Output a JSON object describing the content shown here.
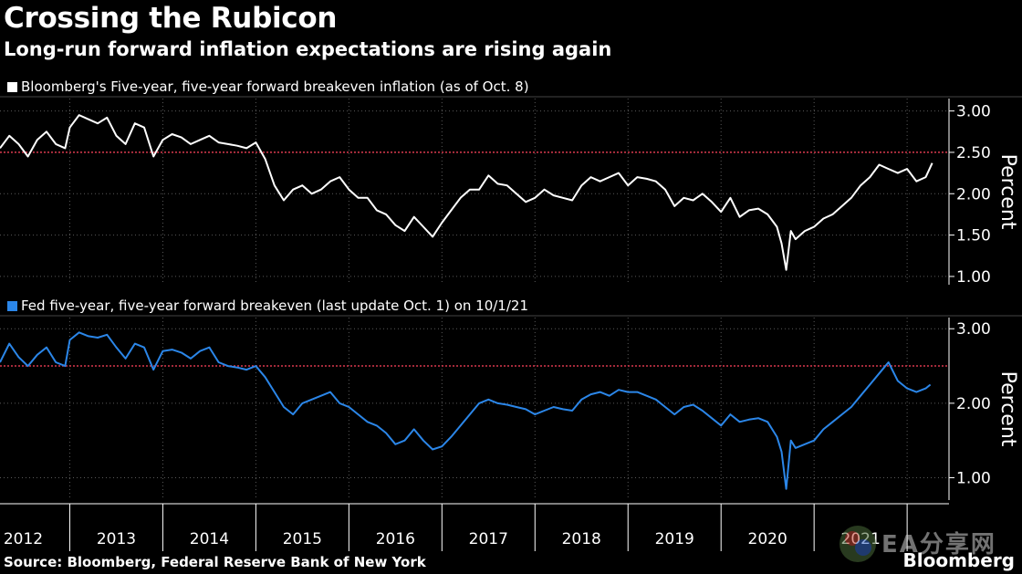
{
  "header": {
    "title": "Crossing the Rubicon",
    "subtitle": "Long-run forward inflation expectations are rising again"
  },
  "footer": {
    "source": "Source: Bloomberg, Federal Reserve Bank of New York",
    "brand": "Bloomberg",
    "watermark": "EA分享网"
  },
  "colors": {
    "background": "#000000",
    "series1": "#ffffff",
    "series2": "#2b86e8",
    "reference_line": "#d9394d",
    "grid": "#5a5a5a"
  },
  "chart_data": [
    {
      "type": "line",
      "legend": "Bloomberg's Five-year, five-year forward breakeven inflation (as of Oct. 8)",
      "ylabel": "Percent",
      "ylim": [
        0.9,
        3.15
      ],
      "yticks": [
        "3.00",
        "2.50",
        "2.00",
        "1.50",
        "1.00"
      ],
      "ytick_values": [
        3.0,
        2.5,
        2.0,
        1.5,
        1.0
      ],
      "reference_line": 2.5,
      "grid": true,
      "series": [
        {
          "x": [
            2011.75,
            2011.85,
            2011.95,
            2012.05,
            2012.15,
            2012.25,
            2012.35,
            2012.45,
            2012.5,
            2012.6,
            2012.7,
            2012.8,
            2012.9,
            2013.0,
            2013.1,
            2013.2,
            2013.3,
            2013.4,
            2013.5,
            2013.6,
            2013.7,
            2013.8,
            2013.9,
            2014.0,
            2014.1,
            2014.2,
            2014.3,
            2014.4,
            2014.5,
            2014.6,
            2014.7,
            2014.8,
            2014.9,
            2015.0,
            2015.1,
            2015.2,
            2015.3,
            2015.4,
            2015.5,
            2015.6,
            2015.7,
            2015.8,
            2015.9,
            2016.0,
            2016.1,
            2016.2,
            2016.3,
            2016.4,
            2016.5,
            2016.6,
            2016.7,
            2016.8,
            2016.9,
            2017.0,
            2017.1,
            2017.2,
            2017.3,
            2017.4,
            2017.5,
            2017.6,
            2017.7,
            2017.8,
            2017.9,
            2018.0,
            2018.1,
            2018.2,
            2018.3,
            2018.4,
            2018.5,
            2018.6,
            2018.7,
            2018.8,
            2018.9,
            2019.0,
            2019.1,
            2019.2,
            2019.3,
            2019.4,
            2019.5,
            2019.6,
            2019.7,
            2019.8,
            2019.9,
            2020.0,
            2020.1,
            2020.15,
            2020.2,
            2020.25,
            2020.3,
            2020.4,
            2020.5,
            2020.6,
            2020.7,
            2020.8,
            2020.9,
            2021.0,
            2021.1,
            2021.2,
            2021.3,
            2021.4,
            2021.5,
            2021.6,
            2021.7,
            2021.77
          ],
          "values": [
            2.55,
            2.7,
            2.6,
            2.45,
            2.65,
            2.75,
            2.6,
            2.55,
            2.8,
            2.95,
            2.9,
            2.85,
            2.92,
            2.7,
            2.6,
            2.85,
            2.8,
            2.45,
            2.65,
            2.72,
            2.68,
            2.6,
            2.65,
            2.7,
            2.62,
            2.6,
            2.58,
            2.55,
            2.62,
            2.42,
            2.1,
            1.92,
            2.05,
            2.1,
            2.0,
            2.05,
            2.15,
            2.2,
            2.05,
            1.95,
            1.95,
            1.8,
            1.75,
            1.62,
            1.55,
            1.72,
            1.6,
            1.48,
            1.65,
            1.8,
            1.95,
            2.05,
            2.05,
            2.22,
            2.12,
            2.1,
            2.0,
            1.9,
            1.95,
            2.05,
            1.98,
            1.95,
            1.92,
            2.1,
            2.2,
            2.15,
            2.2,
            2.25,
            2.1,
            2.2,
            2.18,
            2.15,
            2.05,
            1.85,
            1.95,
            1.92,
            2.0,
            1.9,
            1.78,
            1.95,
            1.72,
            1.8,
            1.82,
            1.75,
            1.6,
            1.4,
            1.08,
            1.55,
            1.45,
            1.55,
            1.6,
            1.7,
            1.75,
            1.85,
            1.95,
            2.1,
            2.2,
            2.35,
            2.3,
            2.25,
            2.3,
            2.15,
            2.2,
            2.37
          ]
        }
      ]
    },
    {
      "type": "line",
      "legend": "Fed five-year, five-year forward breakeven (last update Oct. 1) on 10/1/21",
      "ylabel": "Percent",
      "ylim": [
        0.7,
        3.15
      ],
      "yticks": [
        "3.00",
        "2.00",
        "1.00"
      ],
      "ytick_values": [
        3.0,
        2.0,
        1.0
      ],
      "reference_line": 2.5,
      "grid": true,
      "series": [
        {
          "x": [
            2011.75,
            2011.85,
            2011.95,
            2012.05,
            2012.15,
            2012.25,
            2012.35,
            2012.45,
            2012.5,
            2012.6,
            2012.7,
            2012.8,
            2012.9,
            2013.0,
            2013.1,
            2013.2,
            2013.3,
            2013.4,
            2013.5,
            2013.6,
            2013.7,
            2013.8,
            2013.9,
            2014.0,
            2014.1,
            2014.2,
            2014.3,
            2014.4,
            2014.5,
            2014.6,
            2014.7,
            2014.8,
            2014.9,
            2015.0,
            2015.1,
            2015.2,
            2015.3,
            2015.4,
            2015.5,
            2015.6,
            2015.7,
            2015.8,
            2015.9,
            2016.0,
            2016.1,
            2016.2,
            2016.3,
            2016.4,
            2016.5,
            2016.6,
            2016.7,
            2016.8,
            2016.9,
            2017.0,
            2017.1,
            2017.2,
            2017.3,
            2017.4,
            2017.5,
            2017.6,
            2017.7,
            2017.8,
            2017.9,
            2018.0,
            2018.1,
            2018.2,
            2018.3,
            2018.4,
            2018.5,
            2018.6,
            2018.7,
            2018.8,
            2018.9,
            2019.0,
            2019.1,
            2019.2,
            2019.3,
            2019.4,
            2019.5,
            2019.6,
            2019.7,
            2019.8,
            2019.9,
            2020.0,
            2020.1,
            2020.15,
            2020.2,
            2020.25,
            2020.3,
            2020.4,
            2020.5,
            2020.6,
            2020.7,
            2020.8,
            2020.9,
            2021.0,
            2021.1,
            2021.2,
            2021.3,
            2021.4,
            2021.5,
            2021.6,
            2021.7,
            2021.75
          ],
          "values": [
            2.55,
            2.8,
            2.62,
            2.5,
            2.65,
            2.75,
            2.55,
            2.5,
            2.85,
            2.95,
            2.9,
            2.88,
            2.92,
            2.75,
            2.6,
            2.8,
            2.75,
            2.45,
            2.7,
            2.72,
            2.68,
            2.6,
            2.7,
            2.75,
            2.55,
            2.5,
            2.48,
            2.45,
            2.5,
            2.35,
            2.15,
            1.95,
            1.85,
            2.0,
            2.05,
            2.1,
            2.15,
            2.0,
            1.95,
            1.85,
            1.75,
            1.7,
            1.6,
            1.45,
            1.5,
            1.65,
            1.5,
            1.38,
            1.42,
            1.55,
            1.7,
            1.85,
            2.0,
            2.05,
            2.0,
            1.98,
            1.95,
            1.92,
            1.85,
            1.9,
            1.95,
            1.92,
            1.9,
            2.05,
            2.12,
            2.15,
            2.1,
            2.18,
            2.15,
            2.15,
            2.1,
            2.05,
            1.95,
            1.85,
            1.95,
            1.98,
            1.9,
            1.8,
            1.7,
            1.85,
            1.75,
            1.78,
            1.8,
            1.75,
            1.55,
            1.35,
            0.85,
            1.5,
            1.4,
            1.45,
            1.5,
            1.65,
            1.75,
            1.85,
            1.95,
            2.1,
            2.25,
            2.4,
            2.55,
            2.3,
            2.2,
            2.15,
            2.2,
            2.25
          ]
        }
      ]
    }
  ],
  "x_axis": {
    "type": "time",
    "range": [
      2011.75,
      2021.95
    ],
    "labels": [
      "2012",
      "2013",
      "2014",
      "2015",
      "2016",
      "2017",
      "2018",
      "2019",
      "2020",
      "2021"
    ],
    "label_values": [
      2012,
      2013,
      2014,
      2015,
      2016,
      2017,
      2018,
      2019,
      2020,
      2021
    ]
  }
}
